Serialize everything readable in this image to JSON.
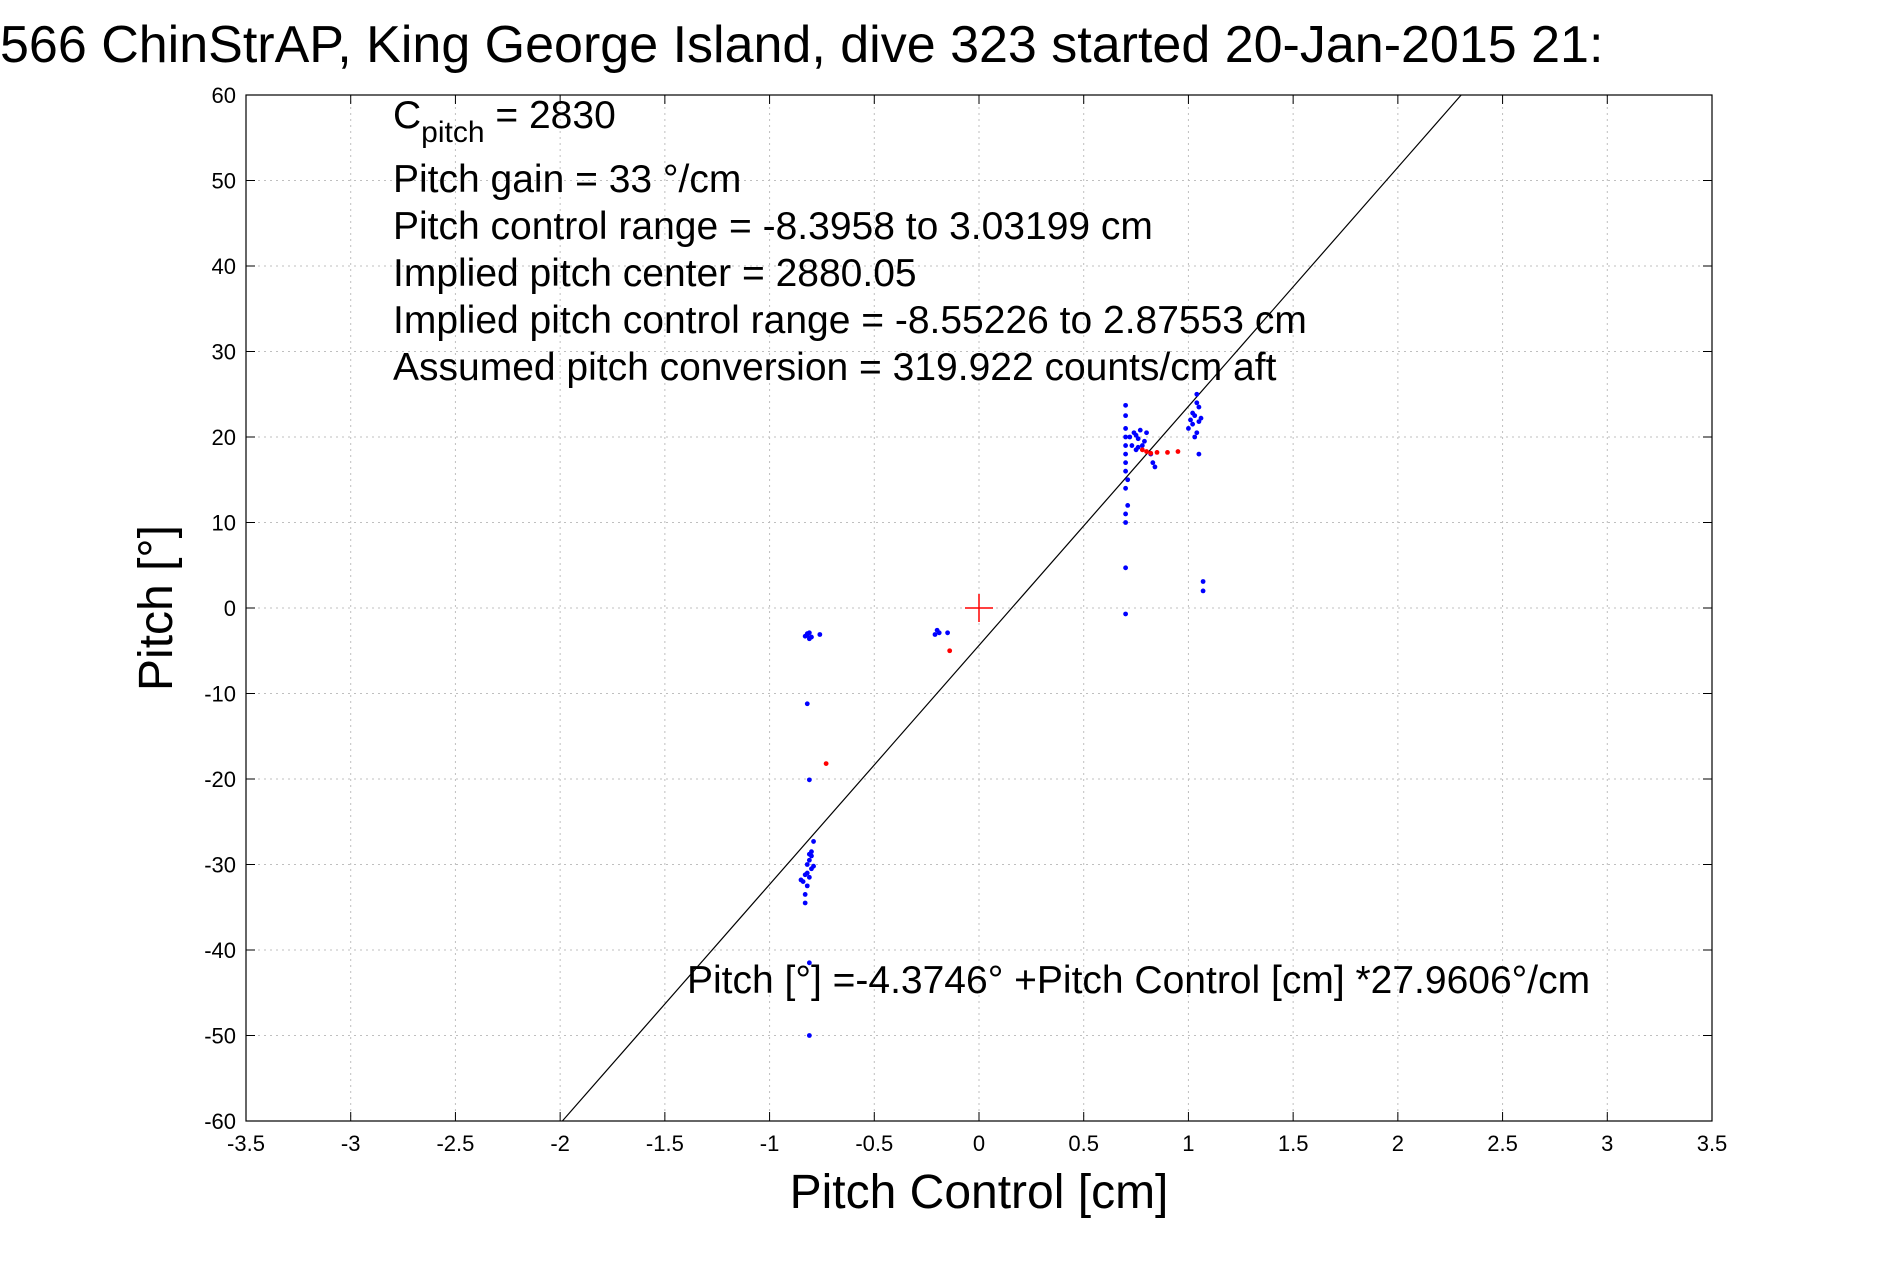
{
  "chart_data": {
    "type": "scatter",
    "title": "566 ChinStrAP, King George Island, dive 323 started 20-Jan-2015 21:",
    "xlabel": "Pitch Control [cm]",
    "ylabel": "Pitch [°]",
    "xlim": [
      -3.5,
      3.5
    ],
    "ylim": [
      -60,
      60
    ],
    "xticks": [
      -3.5,
      -3,
      -2.5,
      -2,
      -1.5,
      -1,
      -0.5,
      0,
      0.5,
      1,
      1.5,
      2,
      2.5,
      3,
      3.5
    ],
    "yticks": [
      -60,
      -50,
      -40,
      -30,
      -20,
      -10,
      0,
      10,
      20,
      30,
      40,
      50,
      60
    ],
    "xtick_labels": [
      "-3.5",
      "-3",
      "-2.5",
      "-2",
      "-1.5",
      "-1",
      "-0.5",
      "0",
      "0.5",
      "1",
      "1.5",
      "2",
      "2.5",
      "3",
      "3.5"
    ],
    "ytick_labels": [
      "-60",
      "-50",
      "-40",
      "-30",
      "-20",
      "-10",
      "0",
      "10",
      "20",
      "30",
      "40",
      "50",
      "60"
    ],
    "grid": true,
    "annotations": {
      "c_pitch_symbol": "C",
      "c_pitch_subscript": "pitch",
      "c_pitch_value": " = 2830",
      "lines": [
        "Pitch gain = 33 °/cm",
        "Pitch control range = -8.3958 to 3.03199 cm",
        "Implied pitch center = 2880.05",
        "Implied pitch control range = -8.55226 to 2.87553 cm",
        "Assumed pitch conversion = 319.922 counts/cm aft"
      ],
      "fit_equation": "Pitch [°] =-4.3746° +Pitch Control [cm] *27.9606°/cm"
    },
    "fit_line": {
      "intercept": -4.3746,
      "slope": 27.9606,
      "color": "#000000"
    },
    "center_marker": {
      "x": 0,
      "y": 0,
      "color": "#ff0000",
      "marker": "plus"
    },
    "series": [
      {
        "color": "#0000ff",
        "points": [
          [
            -0.82,
            -3.2
          ],
          [
            -0.81,
            -2.9
          ],
          [
            -0.8,
            -3.4
          ],
          [
            -0.82,
            -3.0
          ],
          [
            -0.81,
            -3.6
          ],
          [
            -0.76,
            -3.1
          ],
          [
            -0.83,
            -3.3
          ],
          [
            -0.82,
            -11.2
          ],
          [
            -0.81,
            -20.1
          ],
          [
            -0.81,
            -50.0
          ],
          [
            -0.81,
            -41.5
          ],
          [
            -0.84,
            -32.0
          ],
          [
            -0.83,
            -33.5
          ],
          [
            -0.83,
            -34.5
          ],
          [
            -0.82,
            -31.0
          ],
          [
            -0.82,
            -30.0
          ],
          [
            -0.81,
            -29.5
          ],
          [
            -0.8,
            -28.5
          ],
          [
            -0.79,
            -27.3
          ],
          [
            -0.8,
            -30.5
          ],
          [
            -0.81,
            -31.5
          ],
          [
            -0.82,
            -32.5
          ],
          [
            -0.85,
            -31.8
          ],
          [
            -0.8,
            -29.0
          ],
          [
            -0.79,
            -30.2
          ],
          [
            -0.81,
            -28.8
          ],
          [
            -0.83,
            -31.2
          ],
          [
            -0.2,
            -2.6
          ],
          [
            -0.19,
            -2.9
          ],
          [
            -0.21,
            -3.1
          ],
          [
            -0.15,
            -2.9
          ],
          [
            0.7,
            23.7
          ],
          [
            0.7,
            22.5
          ],
          [
            0.7,
            21.0
          ],
          [
            0.7,
            20.0
          ],
          [
            0.7,
            19.0
          ],
          [
            0.7,
            18.0
          ],
          [
            0.7,
            17.0
          ],
          [
            0.7,
            16.0
          ],
          [
            0.71,
            15.0
          ],
          [
            0.7,
            14.0
          ],
          [
            0.71,
            12.0
          ],
          [
            0.7,
            11.0
          ],
          [
            0.7,
            10.0
          ],
          [
            0.7,
            4.7
          ],
          [
            0.7,
            -0.7
          ],
          [
            0.72,
            20.0
          ],
          [
            0.73,
            19.0
          ],
          [
            0.74,
            20.5
          ],
          [
            0.75,
            18.5
          ],
          [
            0.76,
            19.8
          ],
          [
            0.77,
            20.8
          ],
          [
            0.78,
            19.0
          ],
          [
            0.8,
            20.5
          ],
          [
            0.82,
            18.0
          ],
          [
            0.83,
            17.0
          ],
          [
            0.84,
            16.5
          ],
          [
            0.75,
            20.2
          ],
          [
            0.76,
            18.8
          ],
          [
            0.79,
            19.5
          ],
          [
            1.0,
            21.0
          ],
          [
            1.01,
            22.0
          ],
          [
            1.02,
            21.5
          ],
          [
            1.03,
            22.5
          ],
          [
            1.04,
            20.5
          ],
          [
            1.05,
            21.8
          ],
          [
            1.06,
            22.2
          ],
          [
            1.04,
            24.0
          ],
          [
            1.04,
            25.0
          ],
          [
            1.05,
            23.5
          ],
          [
            1.03,
            20.0
          ],
          [
            1.05,
            18.0
          ],
          [
            1.02,
            22.8
          ],
          [
            1.07,
            3.1
          ],
          [
            1.07,
            2.0
          ]
        ]
      },
      {
        "color": "#ff0000",
        "points": [
          [
            -0.73,
            -18.2
          ],
          [
            -0.14,
            -5.0
          ],
          [
            0.8,
            18.3
          ],
          [
            0.82,
            18.1
          ],
          [
            0.85,
            18.2
          ],
          [
            0.9,
            18.2
          ],
          [
            0.95,
            18.3
          ],
          [
            0.78,
            18.5
          ]
        ]
      }
    ]
  }
}
